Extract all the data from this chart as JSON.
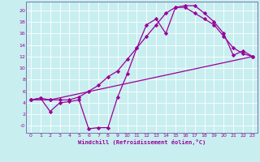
{
  "xlabel": "Windchill (Refroidissement éolien,°C)",
  "bg_color": "#c8eef0",
  "line_color": "#990099",
  "grid_color": "#ffffff",
  "spine_color": "#7777aa",
  "xlim": [
    -0.5,
    23.5
  ],
  "ylim": [
    -1.2,
    21.5
  ],
  "xticks": [
    0,
    1,
    2,
    3,
    4,
    5,
    6,
    7,
    8,
    9,
    10,
    11,
    12,
    13,
    14,
    15,
    16,
    17,
    18,
    19,
    20,
    21,
    22,
    23
  ],
  "yticks": [
    0,
    2,
    4,
    6,
    8,
    10,
    12,
    14,
    16,
    18,
    20
  ],
  "ytick_labels": [
    "-0",
    "2",
    "4",
    "6",
    "8",
    "10",
    "12",
    "14",
    "16",
    "18",
    "20"
  ],
  "curve1_x": [
    0,
    1,
    2,
    3,
    4,
    5,
    6,
    7,
    8,
    9,
    10,
    11,
    12,
    13,
    14,
    15,
    16,
    17,
    18,
    19,
    20,
    21,
    22,
    23
  ],
  "curve1_y": [
    4.5,
    4.8,
    2.5,
    4.0,
    4.2,
    4.5,
    -0.5,
    -0.3,
    -0.3,
    5.0,
    9.0,
    13.5,
    17.5,
    18.5,
    16.0,
    20.5,
    20.8,
    20.8,
    19.5,
    18.0,
    16.0,
    12.2,
    13.0,
    12.0
  ],
  "curve2_x": [
    0,
    2,
    23
  ],
  "curve2_y": [
    4.5,
    4.5,
    12.0
  ],
  "curve3_x": [
    0,
    1,
    2,
    3,
    4,
    5,
    6,
    7,
    8,
    9,
    10,
    11,
    12,
    13,
    14,
    15,
    16,
    17,
    18,
    19,
    20,
    21,
    22,
    23
  ],
  "curve3_y": [
    4.5,
    4.8,
    4.5,
    4.5,
    4.5,
    5.0,
    6.0,
    7.0,
    8.5,
    9.5,
    11.5,
    13.5,
    15.5,
    17.5,
    19.5,
    20.5,
    20.5,
    19.5,
    18.5,
    17.5,
    15.5,
    13.5,
    12.5,
    12.0
  ]
}
